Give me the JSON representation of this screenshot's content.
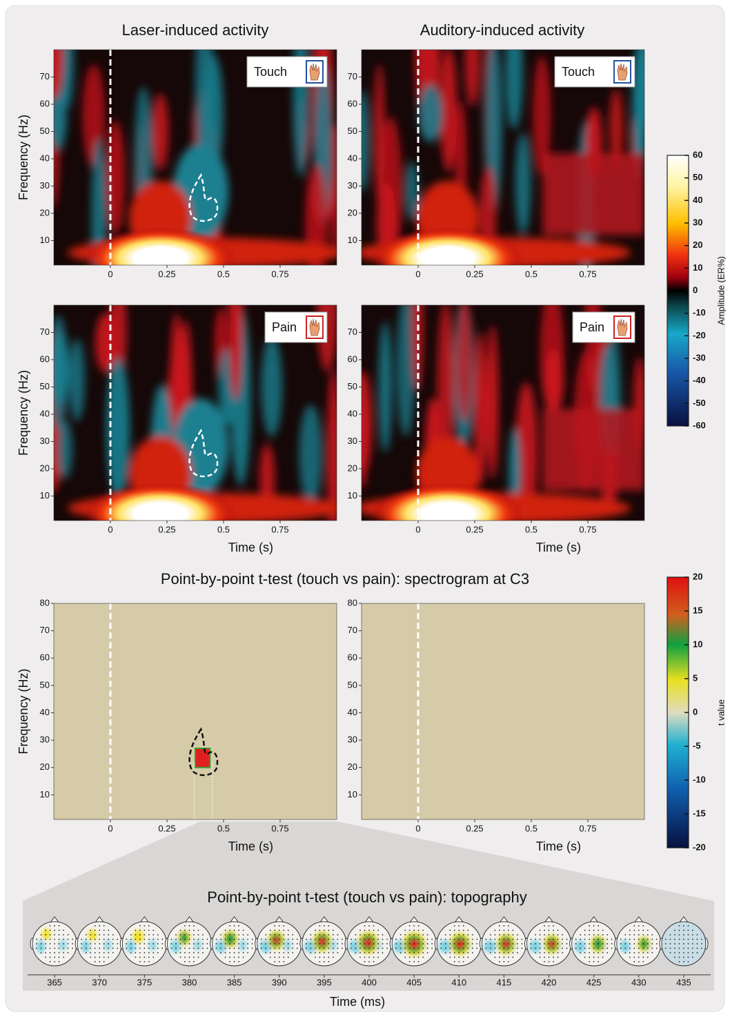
{
  "panel_titles": [
    "Laser-induced activity",
    "Auditory-induced activity"
  ],
  "section_title": "Point-by-point t-test (touch vs pain): spectrogram at C3",
  "chart_data": [
    {
      "type": "spectrogram",
      "xlim": [
        -0.25,
        1.0
      ],
      "ylim": [
        1,
        80
      ],
      "xticks": [
        0,
        0.25,
        0.5,
        0.75
      ],
      "yticks": [
        10,
        20,
        30,
        40,
        50,
        60,
        70
      ],
      "ylabel": "Frequency (Hz)",
      "inset": "Touch"
    },
    {
      "type": "spectrogram",
      "xlim": [
        -0.25,
        1.0
      ],
      "ylim": [
        1,
        80
      ],
      "xticks": [
        0,
        0.25,
        0.5,
        0.75
      ],
      "yticks": [
        10,
        20,
        30,
        40,
        50,
        60,
        70
      ],
      "inset": "Touch"
    },
    {
      "type": "spectrogram",
      "xlim": [
        -0.25,
        1.0
      ],
      "ylim": [
        1,
        80
      ],
      "xticks": [
        0,
        0.25,
        0.5,
        0.75
      ],
      "yticks": [
        10,
        20,
        30,
        40,
        50,
        60,
        70
      ],
      "ylabel": "Frequency (Hz)",
      "xlabel": "Time (s)",
      "inset": "Pain"
    },
    {
      "type": "spectrogram",
      "xlim": [
        -0.25,
        1.0
      ],
      "ylim": [
        1,
        80
      ],
      "xticks": [
        0,
        0.25,
        0.5,
        0.75
      ],
      "yticks": [
        10,
        20,
        30,
        40,
        50,
        60,
        70
      ],
      "xlabel": "Time (s)",
      "inset": "Pain"
    },
    {
      "type": "ttest",
      "xlim": [
        -0.25,
        1.0
      ],
      "ylim": [
        1,
        80
      ],
      "xticks": [
        0,
        0.25,
        0.5,
        0.75
      ],
      "yticks": [
        10,
        20,
        30,
        40,
        50,
        60,
        70,
        80
      ],
      "ylabel": "Frequency (Hz)",
      "xlabel": "Time (s)"
    },
    {
      "type": "ttest",
      "xlim": [
        -0.25,
        1.0
      ],
      "ylim": [
        1,
        80
      ],
      "xticks": [
        0,
        0.25,
        0.5,
        0.75
      ],
      "yticks": [
        10,
        20,
        30,
        40,
        50,
        60,
        70,
        80
      ],
      "xlabel": "Time (s)"
    },
    {
      "type": "colorbar",
      "scale": "er",
      "ylim": [
        -60,
        60
      ],
      "yticks": [
        60,
        50,
        40,
        30,
        20,
        10,
        0,
        -10,
        -20,
        -30,
        -40,
        -50,
        -60
      ],
      "ylabel": "Amplitude (ER%)"
    },
    {
      "type": "colorbar",
      "scale": "t",
      "ylim": [
        -20,
        20
      ],
      "yticks": [
        20,
        15,
        10,
        5,
        0,
        -5,
        -10,
        -15,
        -20
      ],
      "ylabel": "t value"
    },
    {
      "type": "topography",
      "title": "Point-by-point t-test (touch vs pain): topography",
      "xlim": [
        362,
        438
      ],
      "xticks": [
        365,
        370,
        375,
        380,
        385,
        390,
        395,
        400,
        405,
        410,
        415,
        420,
        425,
        430,
        435
      ],
      "xlabel": "Time (ms)"
    }
  ]
}
